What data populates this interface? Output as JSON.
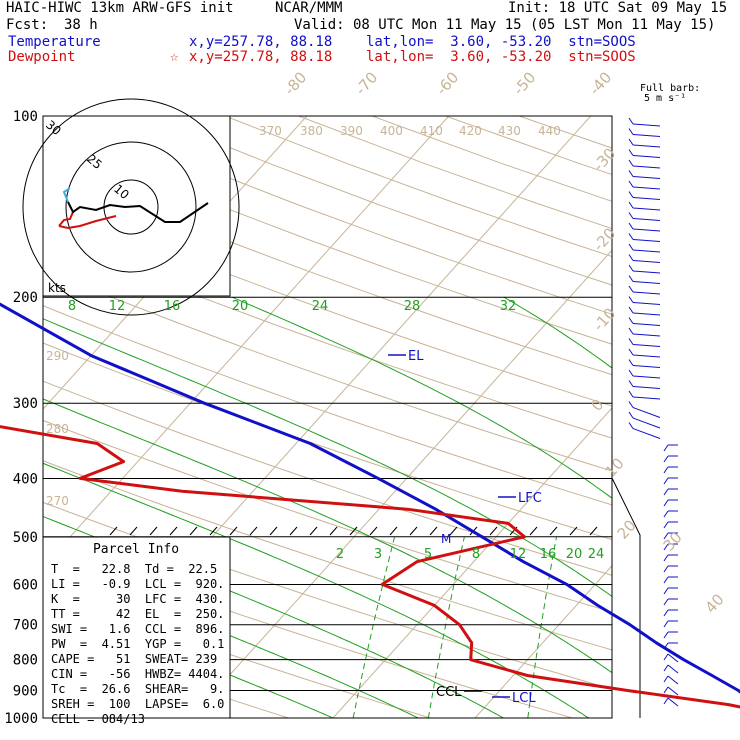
{
  "header": {
    "model": "HAIC-HIWC 13km ARW-GFS init",
    "org": "NCAR/MMM",
    "init": "Init: 18 UTC Sat 09 May 15",
    "fcst_label": "Fcst:",
    "fcst_hours": "38 h",
    "valid": "Valid: 08 UTC Mon 11 May 15 (05 LST Mon 11 May 15)",
    "temp_label": "Temperature",
    "temp_info": "x,y=257.78, 88.18    lat,lon=  3.60, -53.20  stn=SOOS",
    "dew_label": "Dewpoint",
    "dew_marker": "☆",
    "dew_info": "x,y=257.78, 88.18    lat,lon=  3.60, -53.20  stn=SOOS",
    "barb_note": "Full barb:",
    "barb_units": "5 m s⁻¹"
  },
  "colors": {
    "temperature": "#1010c8",
    "dewpoint": "#d01010",
    "isotherm": "#c8b496",
    "theta": "#c8b496",
    "mixing_ratio": "#20a020",
    "moist_adiabat": "#20a020",
    "isobar": "#000000",
    "hodo_green": "#20a020",
    "hodo_cyan": "#40b0e0"
  },
  "chart_data": {
    "type": "skew-t",
    "pressure_levels": [
      "100",
      "200",
      "300",
      "400",
      "500",
      "600",
      "700",
      "800",
      "900",
      "1000"
    ],
    "isotherm_labels": [
      "-80",
      "-70",
      "-60",
      "-50",
      "-40",
      "-30",
      "-20",
      "-10",
      "0",
      "10",
      "20",
      "30",
      "40"
    ],
    "theta_labels": [
      "370",
      "380",
      "390",
      "400",
      "410",
      "420",
      "430",
      "440",
      "290",
      "280",
      "270"
    ],
    "mixing_ratio_upper": [
      "8",
      "12",
      "16",
      "20",
      "24",
      "28",
      "32"
    ],
    "mixing_ratio_lower": [
      "2",
      "3",
      "5",
      "8",
      "12",
      "16",
      "20",
      "24"
    ],
    "temperature_profile": [
      {
        "p": 1000,
        "t": 25
      },
      {
        "p": 950,
        "t": 19
      },
      {
        "p": 900,
        "t": 16.8
      },
      {
        "p": 850,
        "t": 14
      },
      {
        "p": 800,
        "t": 11
      },
      {
        "p": 750,
        "t": 8
      },
      {
        "p": 700,
        "t": 5
      },
      {
        "p": 650,
        "t": 1.5
      },
      {
        "p": 600,
        "t": -2
      },
      {
        "p": 550,
        "t": -6.5
      },
      {
        "p": 500,
        "t": -11
      },
      {
        "p": 450,
        "t": -16
      },
      {
        "p": 400,
        "t": -22
      },
      {
        "p": 350,
        "t": -29
      },
      {
        "p": 300,
        "t": -39
      },
      {
        "p": 250,
        "t": -50
      },
      {
        "p": 200,
        "t": -61
      },
      {
        "p": 175,
        "t": -68
      },
      {
        "p": 150,
        "t": -75
      },
      {
        "p": 125,
        "t": -81
      },
      {
        "p": 100,
        "t": -84
      }
    ],
    "dewpoint_profile": [
      {
        "p": 1000,
        "t": 22.5
      },
      {
        "p": 950,
        "t": 17
      },
      {
        "p": 900,
        "t": 9
      },
      {
        "p": 850,
        "t": 1
      },
      {
        "p": 800,
        "t": -4
      },
      {
        "p": 750,
        "t": -5
      },
      {
        "p": 700,
        "t": -7
      },
      {
        "p": 650,
        "t": -10
      },
      {
        "p": 600,
        "t": -15
      },
      {
        "p": 550,
        "t": -14
      },
      {
        "p": 500,
        "t": -8
      },
      {
        "p": 475,
        "t": -10
      },
      {
        "p": 450,
        "t": -18
      },
      {
        "p": 420,
        "t": -35
      },
      {
        "p": 400,
        "t": -43
      },
      {
        "p": 375,
        "t": -41
      },
      {
        "p": 350,
        "t": -44
      },
      {
        "p": 320,
        "t": -55
      },
      {
        "p": 300,
        "t": -65
      },
      {
        "p": 280,
        "t": -74
      },
      {
        "p": 260,
        "t": -65
      },
      {
        "p": 240,
        "t": -65
      },
      {
        "p": 220,
        "t": -71
      },
      {
        "p": 200,
        "t": -77
      },
      {
        "p": 175,
        "t": -84
      },
      {
        "p": 150,
        "t": -87
      },
      {
        "p": 125,
        "t": -88
      },
      {
        "p": 100,
        "t": -87
      }
    ],
    "annotations": [
      {
        "label": "EL",
        "p": 250
      },
      {
        "label": "LFC",
        "p": 430
      },
      {
        "label": "M",
        "p": 505
      },
      {
        "label": "CCL",
        "p": 896
      },
      {
        "label": "LCL",
        "p": 920
      }
    ],
    "hodograph": {
      "ring_labels": [
        "10",
        "25",
        "30"
      ],
      "units_label": "kts"
    },
    "parcel_info": {
      "title": "Parcel Info",
      "rows": [
        "T  =   22.8  Td =  22.5",
        "LI =   -0.9  LCL =  920.",
        "K  =     30  LFC =  430.",
        "TT =     42  EL  =  250.",
        "SWI =   1.6  CCL =  896.",
        "PW  =  4.51  YGP =   0.1",
        "CAPE =   51  SWEAT= 239",
        "CIN =   -56  HWBZ= 4404.",
        "Tc  =  26.6  SHEAR=   9.",
        "SREH =  100  LAPSE=  6.0",
        "CELL = 084/13"
      ]
    }
  }
}
